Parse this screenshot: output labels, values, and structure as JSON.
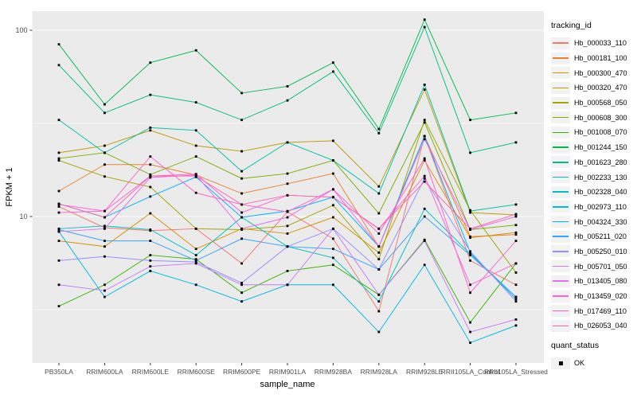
{
  "chart_data": {
    "type": "line",
    "xlabel": "sample_name",
    "ylabel": "FPKM + 1",
    "y_scale": "log10",
    "y_ticks": [
      10,
      100
    ],
    "y_minor_gridlines": [
      3.162,
      31.62
    ],
    "ylim": [
      1.65,
      125
    ],
    "grid": "on",
    "panel_bg": "#EBEBEB",
    "grid_color": "#FFFFFF",
    "point_color": "#000000",
    "axis_text_color": "#4D4D4D",
    "categories": [
      "PB350LA",
      "RRIM600LA",
      "RRIM600LE",
      "RRIM600SE",
      "RRIM600PE",
      "RRIM901LA",
      "RRIM928BA",
      "RRIM928LA",
      "RRIM928LE",
      "RRII105LA_Control",
      "RRII105LA_Stressed"
    ],
    "legend": {
      "title": "tracking_id",
      "position": "right"
    },
    "legend2": {
      "title": "quant_status",
      "items": [
        {
          "label": "OK",
          "marker": "black-square"
        }
      ]
    },
    "series": [
      {
        "name": "Hb_000033_110",
        "color": "#F8766D",
        "values": [
          11.3,
          8.7,
          8.4,
          8.6,
          5.6,
          10.6,
          7.6,
          3.1,
          27,
          5.8,
          4.3
        ]
      },
      {
        "name": "Hb_000181_100",
        "color": "#EA8331",
        "values": [
          13.7,
          19,
          19,
          16.7,
          13.3,
          15,
          17,
          6.9,
          27,
          7.8,
          8.0
        ]
      },
      {
        "name": "Hb_000300_470",
        "color": "#D89000",
        "values": [
          7.4,
          6.9,
          10.4,
          6.7,
          8.6,
          8.1,
          9.9,
          6.4,
          20,
          7.7,
          8.2
        ]
      },
      {
        "name": "Hb_000320_470",
        "color": "#C09B00",
        "values": [
          22,
          24,
          29,
          24,
          22.4,
          25,
          25.5,
          14.5,
          48,
          10.5,
          10.2
        ]
      },
      {
        "name": "Hb_000568_050",
        "color": "#A3A500",
        "values": [
          20,
          16.4,
          14.4,
          8.6,
          8.5,
          8.9,
          11.5,
          5.9,
          33,
          10.8,
          5.0
        ]
      },
      {
        "name": "Hb_000608_300",
        "color": "#7CAE00",
        "values": [
          20.5,
          22,
          16.8,
          21,
          16,
          17,
          20,
          10.4,
          32,
          8.5,
          9.0
        ]
      },
      {
        "name": "Hb_001008_070",
        "color": "#39B600",
        "values": [
          3.3,
          4.3,
          6.2,
          5.9,
          3.9,
          5.1,
          5.5,
          3.8,
          7.5,
          2.7,
          5.6
        ]
      },
      {
        "name": "Hb_001244_150",
        "color": "#00BB4E",
        "values": [
          84,
          40,
          67,
          78,
          46,
          50,
          67,
          29.5,
          114,
          33,
          36
        ]
      },
      {
        "name": "Hb_001623_280",
        "color": "#00BF7D",
        "values": [
          65,
          36,
          45,
          41,
          33,
          42,
          60,
          28,
          104,
          22,
          25
        ]
      },
      {
        "name": "Hb_002233_130",
        "color": "#00C1A3",
        "values": [
          33,
          22,
          30,
          29,
          17.5,
          25,
          20,
          13.3,
          51,
          10.7,
          11.6
        ]
      },
      {
        "name": "Hb_002328_040",
        "color": "#00BFC4",
        "values": [
          8.6,
          8.9,
          8.5,
          6.2,
          9.9,
          6.9,
          6.0,
          3.5,
          11,
          6.3,
          3.7
        ]
      },
      {
        "name": "Hb_002973_110",
        "color": "#00BAE0",
        "values": [
          8.3,
          3.7,
          5.1,
          4.3,
          3.5,
          4.3,
          4.3,
          2.4,
          5.5,
          2.1,
          2.6
        ]
      },
      {
        "name": "Hb_004324_330",
        "color": "#00B0F6",
        "values": [
          11.7,
          9.9,
          12.8,
          16.3,
          9.9,
          10.7,
          12.7,
          6.9,
          27,
          6.4,
          3.6
        ]
      },
      {
        "name": "Hb_005211_020",
        "color": "#35A2FF",
        "values": [
          8.5,
          7.4,
          7.4,
          5.8,
          7.6,
          6.9,
          6.7,
          5.2,
          10,
          6.2,
          3.7
        ]
      },
      {
        "name": "Hb_005250_010",
        "color": "#9590FF",
        "values": [
          5.8,
          6.1,
          5.8,
          5.7,
          4.4,
          6.9,
          8.6,
          5.2,
          16,
          6.5,
          3.5
        ]
      },
      {
        "name": "Hb_005701_050",
        "color": "#C77CFF",
        "values": [
          4.3,
          4.0,
          5.4,
          5.6,
          4.3,
          4.3,
          8.6,
          3.8,
          7.4,
          2.4,
          2.8
        ]
      },
      {
        "name": "Hb_013405_080",
        "color": "#E76BF3",
        "values": [
          8.3,
          8.6,
          16.2,
          16.7,
          8.6,
          9.9,
          14,
          6.9,
          26,
          8.5,
          10.0
        ]
      },
      {
        "name": "Hb_013459_020",
        "color": "#FA62DB",
        "values": [
          10.5,
          10.7,
          16.5,
          16.9,
          10.5,
          13,
          12.7,
          8.6,
          16.5,
          4.3,
          5.6
        ]
      },
      {
        "name": "Hb_017469_110",
        "color": "#FF61CC",
        "values": [
          11.6,
          10.7,
          21,
          13.4,
          11.6,
          10.6,
          14,
          8.1,
          20.5,
          3.9,
          7.4
        ]
      },
      {
        "name": "Hb_026053_040",
        "color": "#FF65AE",
        "values": [
          11.7,
          9.9,
          16.5,
          16.5,
          11.6,
          13,
          12.7,
          8.6,
          15.4,
          8.6,
          10.3
        ]
      }
    ]
  }
}
